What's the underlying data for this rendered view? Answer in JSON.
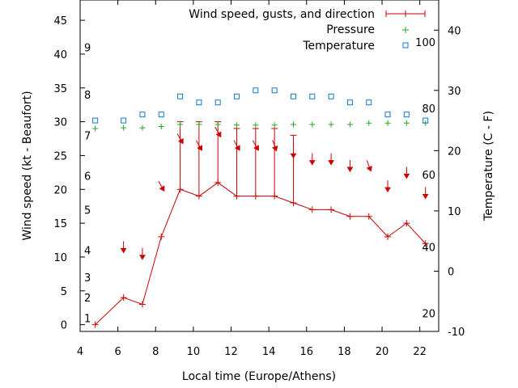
{
  "chart_data": {
    "type": "line",
    "xlabel": "Local time (Europe/Athens)",
    "ylabel": "Wind speed (kt - Beaufort)",
    "y2label": "Temperature (C - F)",
    "xlim": [
      4,
      23
    ],
    "ylim": [
      -1,
      48
    ],
    "y2lim": [
      -10,
      45
    ],
    "x_ticks": [
      4,
      6,
      8,
      10,
      12,
      14,
      16,
      18,
      20,
      22
    ],
    "y_ticks": [
      0,
      5,
      10,
      15,
      20,
      25,
      30,
      35,
      40,
      45
    ],
    "y2_ticks": [
      -10,
      0,
      10,
      20,
      30,
      40
    ],
    "x_tick_labels": [
      "4",
      "6",
      "8",
      "10",
      "12",
      "14",
      "16",
      "18",
      "20",
      "22"
    ],
    "y_tick_labels": [
      "0",
      "5",
      "10",
      "15",
      "20",
      "25",
      "30",
      "35",
      "40",
      "45"
    ],
    "y2_tick_labels": [
      "-10",
      "0",
      "10",
      "20",
      "30",
      "40"
    ],
    "beaufort_labels": [
      {
        "text": "1",
        "y": 1
      },
      {
        "text": "2",
        "y": 4
      },
      {
        "text": "3",
        "y": 7
      },
      {
        "text": "4",
        "y": 11
      },
      {
        "text": "5",
        "y": 17
      },
      {
        "text": "6",
        "y": 22
      },
      {
        "text": "7",
        "y": 28
      },
      {
        "text": "8",
        "y": 34
      },
      {
        "text": "9",
        "y": 41
      }
    ],
    "fahrenheit_labels": [
      {
        "text": "20",
        "temp": -7
      },
      {
        "text": "40",
        "temp": 4
      },
      {
        "text": "60",
        "temp": 16
      },
      {
        "text": "80",
        "temp": 27
      },
      {
        "text": "100",
        "temp": 38
      }
    ],
    "legend": {
      "position": "top-right",
      "entries": [
        "Wind speed, gusts, and direction",
        "Pressure",
        "Temperature"
      ]
    },
    "series": [
      {
        "name": "Wind speed, gusts, and direction",
        "color": "#cc0000",
        "x": [
          4.8,
          6.3,
          7.3,
          8.3,
          9.3,
          10.3,
          11.3,
          12.3,
          13.3,
          14.3,
          15.3,
          16.3,
          17.3,
          18.3,
          19.3,
          20.3,
          21.3,
          22.3
        ],
        "values": [
          0,
          4,
          3,
          13,
          20,
          19,
          21,
          19,
          19,
          19,
          18,
          17,
          17,
          16,
          16,
          13,
          15,
          12
        ],
        "gusts": [
          null,
          null,
          null,
          null,
          30,
          30,
          30,
          29,
          29,
          29,
          28,
          null,
          null,
          null,
          null,
          null,
          null,
          null
        ],
        "direction_deg": [
          null,
          0,
          0,
          330,
          330,
          330,
          330,
          330,
          330,
          340,
          0,
          0,
          0,
          0,
          340,
          0,
          0,
          0
        ]
      },
      {
        "name": "Pressure",
        "color": "#22aa22",
        "x": [
          4.8,
          6.3,
          7.3,
          8.3,
          9.3,
          10.3,
          11.3,
          12.3,
          13.3,
          14.3,
          15.3,
          16.3,
          17.3,
          18.3,
          19.3,
          20.3,
          21.3,
          22.3
        ],
        "values": [
          29,
          29.1,
          29.1,
          29.3,
          29.6,
          29.6,
          29.6,
          29.5,
          29.5,
          29.5,
          29.6,
          29.6,
          29.6,
          29.6,
          29.8,
          29.8,
          29.8,
          29.8
        ]
      },
      {
        "name": "Temperature",
        "color": "#1177cc",
        "x": [
          4.8,
          6.3,
          7.3,
          8.3,
          9.3,
          10.3,
          11.3,
          12.3,
          13.3,
          14.3,
          15.3,
          16.3,
          17.3,
          18.3,
          19.3,
          20.3,
          21.3,
          22.3
        ],
        "values": [
          25,
          25,
          26,
          26,
          29,
          28,
          28,
          29,
          30,
          30,
          29,
          29,
          29,
          28,
          28,
          26,
          26,
          25
        ]
      }
    ]
  }
}
